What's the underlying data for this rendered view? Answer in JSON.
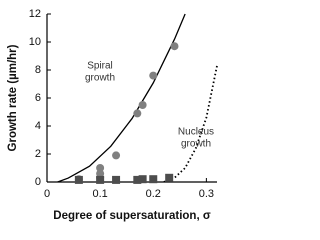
{
  "chart_data": {
    "type": "scatter",
    "x_label": "Degree of supersaturation, σ",
    "y_label": "Growth rate (µm/hr)",
    "annotations": [
      [
        "Spiral",
        "growth"
      ],
      [
        "Nucleus",
        "growth"
      ]
    ],
    "xlim": [
      0,
      0.32
    ],
    "xticks": [
      0,
      0.1,
      0.2,
      0.3
    ],
    "ylim": [
      0,
      12
    ],
    "yticks": [
      0,
      2,
      4,
      6,
      8,
      10,
      12
    ],
    "series": [
      {
        "kind": "line",
        "dash": "solid",
        "color": "#000000",
        "x": [
          0.02,
          0.04,
          0.08,
          0.12,
          0.16,
          0.2,
          0.24,
          0.26
        ],
        "values": [
          0,
          0.28,
          1.13,
          2.55,
          4.53,
          7.08,
          10.2,
          12
        ]
      },
      {
        "kind": "line",
        "dash": "dotted",
        "color": "#000000",
        "x": [
          0.22,
          0.24,
          0.26,
          0.28,
          0.3,
          0.32
        ],
        "values": [
          0,
          0.3,
          1.0,
          2.4,
          4.6,
          8.3
        ]
      },
      {
        "kind": "points",
        "marker": "circle",
        "color": "#808080",
        "x": [
          0.06,
          0.1,
          0.1,
          0.1,
          0.13,
          0.17,
          0.18,
          0.2,
          0.24
        ],
        "values": [
          0.2,
          0.3,
          0.6,
          1.0,
          1.9,
          4.9,
          5.5,
          7.6,
          9.7
        ]
      },
      {
        "kind": "points",
        "marker": "square",
        "color": "#4d4d4d",
        "x": [
          0.06,
          0.1,
          0.13,
          0.17,
          0.18,
          0.2,
          0.23
        ],
        "values": [
          0.15,
          0.15,
          0.15,
          0.15,
          0.2,
          0.2,
          0.3
        ]
      }
    ]
  }
}
